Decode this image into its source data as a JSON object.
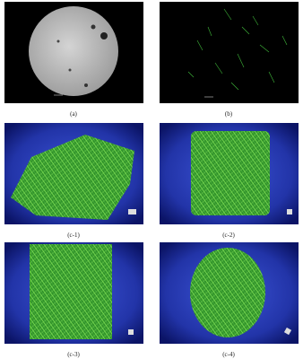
{
  "figure": {
    "panels": [
      {
        "caption": "(a)"
      },
      {
        "caption": "(b)"
      },
      {
        "caption": "(c-1)"
      },
      {
        "caption": "(c-2)"
      },
      {
        "caption": "(c-3)"
      },
      {
        "caption": "(c-4)"
      }
    ]
  }
}
